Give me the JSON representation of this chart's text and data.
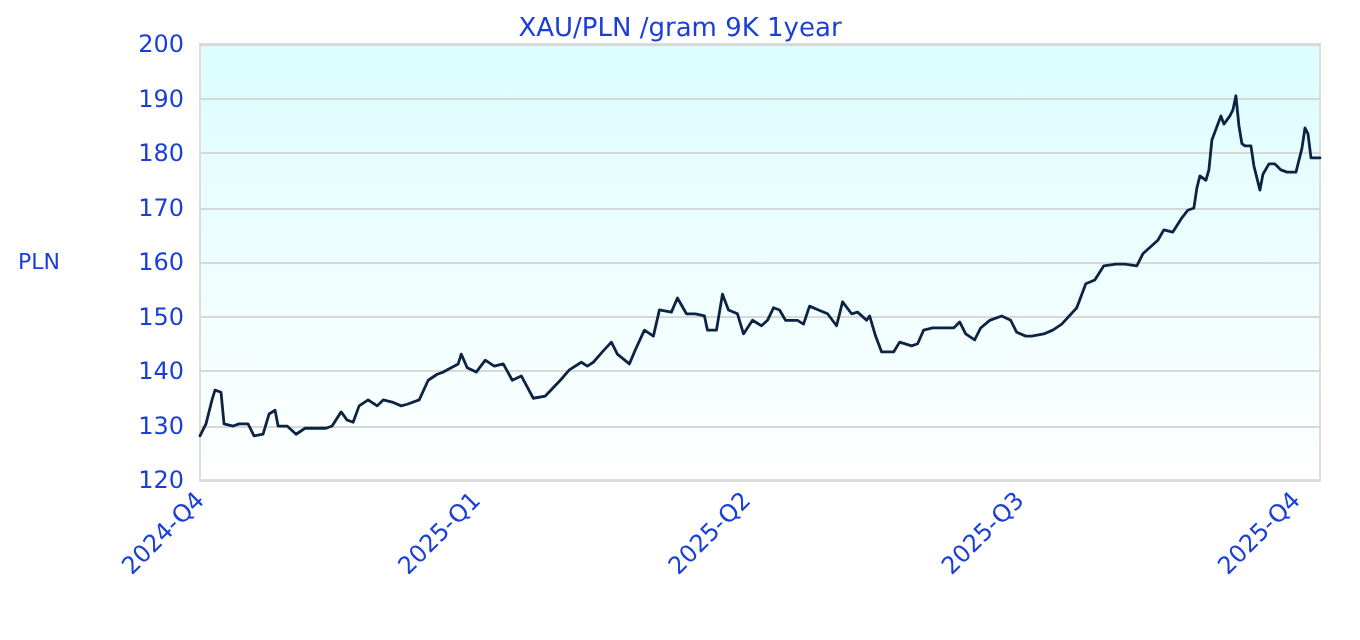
{
  "chart_data": {
    "type": "line",
    "title": "XAU/PLN /gram 9K 1year",
    "ylabel": "PLN",
    "x": [
      "2024-10-01",
      "2024-10-03",
      "2024-10-05",
      "2024-10-06",
      "2024-10-08",
      "2024-10-09",
      "2024-10-12",
      "2024-10-14",
      "2024-10-17",
      "2024-10-19",
      "2024-10-22",
      "2024-10-24",
      "2024-10-26",
      "2024-10-27",
      "2024-10-30",
      "2024-11-02",
      "2024-11-05",
      "2024-11-09",
      "2024-11-12",
      "2024-11-14",
      "2024-11-17",
      "2024-11-19",
      "2024-11-21",
      "2024-11-23",
      "2024-11-26",
      "2024-11-29",
      "2024-12-01",
      "2024-12-04",
      "2024-12-07",
      "2024-12-09",
      "2024-12-13",
      "2024-12-16",
      "2024-12-19",
      "2024-12-21",
      "2024-12-26",
      "2024-12-27",
      "2024-12-29",
      "2025-01-01",
      "2025-01-04",
      "2025-01-07",
      "2025-01-10",
      "2025-01-13",
      "2025-01-16",
      "2025-01-20",
      "2025-01-24",
      "2025-01-29",
      "2025-02-01",
      "2025-02-05",
      "2025-02-07",
      "2025-02-09",
      "2025-02-12",
      "2025-02-15",
      "2025-02-17",
      "2025-02-21",
      "2025-02-23",
      "2025-02-26",
      "2025-03-01",
      "2025-03-03",
      "2025-03-07",
      "2025-03-09",
      "2025-03-12",
      "2025-03-15",
      "2025-03-18",
      "2025-03-19",
      "2025-03-22",
      "2025-03-24",
      "2025-03-26",
      "2025-03-29",
      "2025-03-31",
      "2025-04-03",
      "2025-04-06",
      "2025-04-08",
      "2025-04-10",
      "2025-04-12",
      "2025-04-14",
      "2025-04-18",
      "2025-04-20",
      "2025-04-22",
      "2025-04-25",
      "2025-04-28",
      "2025-05-01",
      "2025-05-03",
      "2025-05-06",
      "2025-05-08",
      "2025-05-11",
      "2025-05-12",
      "2025-05-14",
      "2025-05-16",
      "2025-05-20",
      "2025-05-22",
      "2025-05-26",
      "2025-05-28",
      "2025-05-30",
      "2025-06-02",
      "2025-06-05",
      "2025-06-09",
      "2025-06-11",
      "2025-06-13",
      "2025-06-16",
      "2025-06-18",
      "2025-06-21",
      "2025-06-25",
      "2025-06-28",
      "2025-06-30",
      "2025-07-03",
      "2025-07-05",
      "2025-07-09",
      "2025-07-12",
      "2025-07-15",
      "2025-07-20",
      "2025-07-23",
      "2025-07-26",
      "2025-07-29",
      "2025-08-02",
      "2025-08-05",
      "2025-08-09",
      "2025-08-11",
      "2025-08-16",
      "2025-08-18",
      "2025-08-21",
      "2025-08-24",
      "2025-08-26",
      "2025-08-28",
      "2025-08-29",
      "2025-08-30",
      "2025-09-01",
      "2025-09-02",
      "2025-09-03",
      "2025-09-06",
      "2025-09-07",
      "2025-09-09",
      "2025-09-10",
      "2025-09-11",
      "2025-09-12",
      "2025-09-13",
      "2025-09-14",
      "2025-09-16",
      "2025-09-17",
      "2025-09-19",
      "2025-09-20",
      "2025-09-22",
      "2025-09-24",
      "2025-09-26",
      "2025-09-28",
      "2025-10-01",
      "2025-10-03",
      "2025-10-04",
      "2025-10-05",
      "2025-10-06",
      "2025-10-09"
    ],
    "series": [
      {
        "color": "#0d2342",
        "values": [
          128.1,
          130.3,
          134.7,
          136.5,
          136.1,
          130.3,
          129.9,
          130.3,
          130.3,
          128.1,
          128.4,
          132.1,
          132.8,
          129.9,
          129.9,
          128.4,
          129.5,
          129.5,
          129.5,
          129.9,
          132.5,
          131.0,
          130.6,
          133.6,
          134.7,
          133.6,
          134.7,
          134.3,
          133.6,
          133.9,
          134.7,
          138.3,
          139.4,
          139.8,
          141.3,
          143.1,
          140.6,
          139.8,
          142.0,
          140.9,
          141.3,
          138.3,
          139.1,
          135.0,
          135.4,
          138.3,
          140.2,
          141.6,
          140.9,
          141.6,
          143.5,
          145.3,
          143.1,
          141.3,
          143.9,
          147.5,
          146.4,
          151.2,
          150.8,
          153.4,
          150.5,
          150.5,
          150.1,
          147.5,
          147.5,
          154.1,
          151.2,
          150.5,
          146.8,
          149.3,
          148.3,
          149.3,
          151.6,
          151.2,
          149.3,
          149.3,
          148.6,
          151.9,
          151.2,
          150.5,
          148.3,
          152.7,
          150.5,
          150.8,
          149.3,
          150.1,
          146.4,
          143.5,
          143.5,
          145.3,
          144.6,
          145.0,
          147.5,
          147.9,
          147.9,
          147.9,
          149.0,
          146.8,
          145.7,
          147.9,
          149.3,
          150.1,
          149.3,
          147.1,
          146.4,
          146.4,
          146.8,
          147.5,
          148.6,
          151.6,
          156.0,
          156.7,
          159.3,
          159.6,
          159.6,
          159.3,
          161.5,
          164.0,
          165.9,
          165.5,
          168.1,
          169.5,
          169.9,
          173.6,
          175.8,
          175.0,
          176.9,
          182.4,
          186.8,
          185.3,
          186.8,
          187.9,
          190.5,
          185.0,
          181.7,
          181.3,
          181.3,
          177.6,
          173.2,
          176.1,
          178.0,
          178.0,
          176.9,
          176.5,
          176.5,
          180.9,
          184.6,
          183.5,
          179.1,
          179.1
        ]
      }
    ],
    "xlim": [
      "2024-10-01",
      "2025-10-09"
    ],
    "xticks": [
      {
        "value": "2024-10-01",
        "label": "2024-Q4"
      },
      {
        "value": "2025-01-01",
        "label": "2025-Q1"
      },
      {
        "value": "2025-04-01",
        "label": "2025-Q2"
      },
      {
        "value": "2025-07-01",
        "label": "2025-Q3"
      },
      {
        "value": "2025-10-01",
        "label": "2025-Q4"
      }
    ],
    "ylim": [
      120,
      200
    ],
    "yticks": [
      120,
      130,
      140,
      150,
      160,
      170,
      180,
      190,
      200
    ],
    "grid": "y",
    "marker": "none",
    "line_style": "solid"
  }
}
